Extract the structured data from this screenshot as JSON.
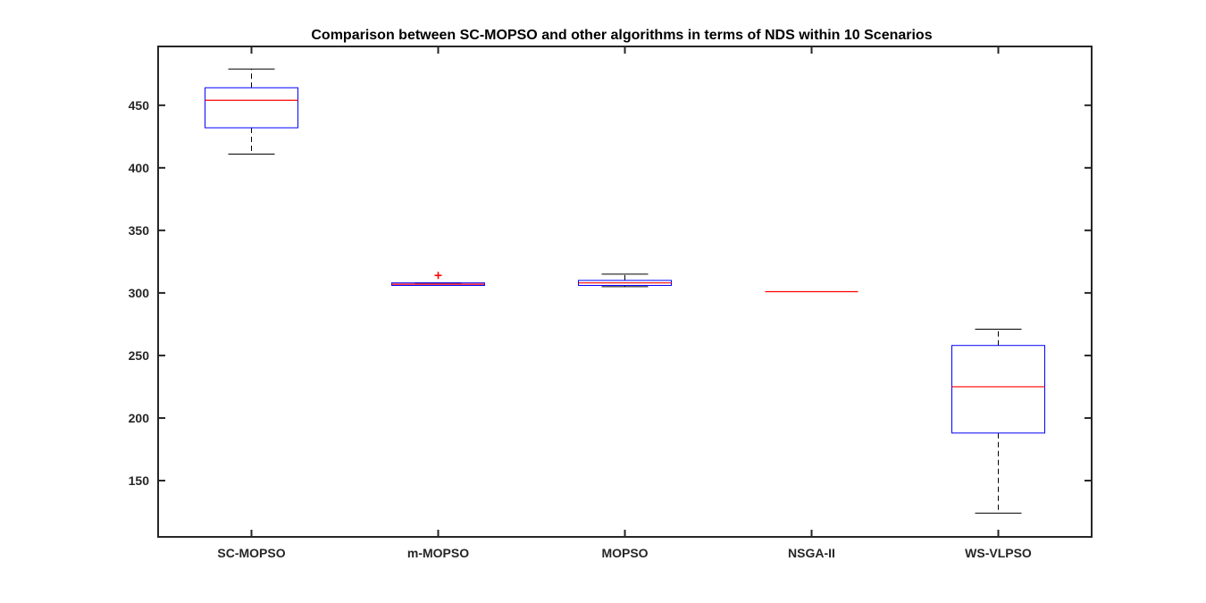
{
  "chart_data": {
    "type": "boxplot",
    "title": "Comparison between SC-MOPSO and other algorithms in terms of NDS within 10 Scenarios",
    "xlabel": "",
    "ylabel": "",
    "categories": [
      "SC-MOPSO",
      "m-MOPSO",
      "MOPSO",
      "NSGA-II",
      "WS-VLPSO"
    ],
    "ylim": [
      105,
      497
    ],
    "yticks": [
      150,
      200,
      250,
      300,
      350,
      400,
      450
    ],
    "grid": false,
    "boxes": [
      {
        "category": "SC-MOPSO",
        "whisker_low": 411,
        "q1": 432,
        "median": 454,
        "q3": 464,
        "whisker_high": 479,
        "outliers": []
      },
      {
        "category": "m-MOPSO",
        "whisker_low": 306,
        "q1": 306,
        "median": 307,
        "q3": 308,
        "whisker_high": 308,
        "outliers": [
          314
        ]
      },
      {
        "category": "MOPSO",
        "whisker_low": 305,
        "q1": 306,
        "median": 308,
        "q3": 310,
        "whisker_high": 315,
        "outliers": []
      },
      {
        "category": "NSGA-II",
        "whisker_low": 301,
        "q1": 301,
        "median": 301,
        "q3": 301,
        "whisker_high": 301,
        "outliers": []
      },
      {
        "category": "WS-VLPSO",
        "whisker_low": 124,
        "q1": 188,
        "median": 225,
        "q3": 258,
        "whisker_high": 271,
        "outliers": []
      }
    ],
    "colors": {
      "box": "#0000ff",
      "median": "#ff0000",
      "whisker": "#000000",
      "outlier": "#ff0000",
      "axes": "#262626"
    }
  }
}
